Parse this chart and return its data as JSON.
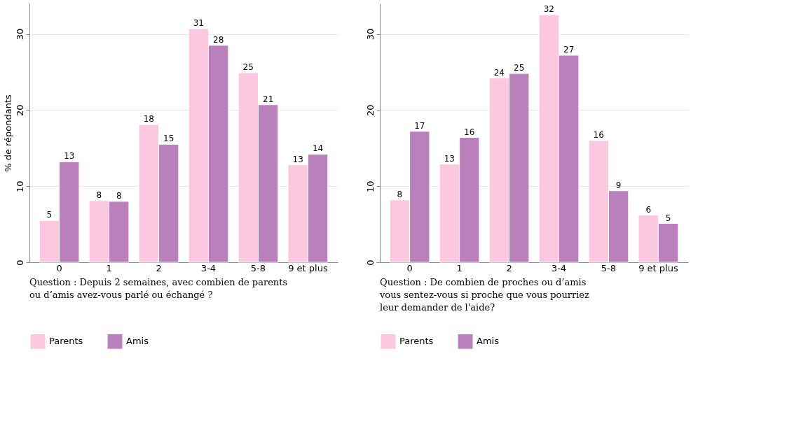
{
  "chart_data": [
    {
      "type": "bar",
      "ylabel": "% de répondants",
      "categories": [
        "0",
        "1",
        "2",
        "3-4",
        "5-8",
        "9 et plus"
      ],
      "ylim": [
        0,
        34
      ],
      "yticks": [
        0,
        10,
        20,
        30
      ],
      "grid": "y",
      "legend": "bottom",
      "series": [
        {
          "name": "Parents",
          "color": "#fcc8e0",
          "values": [
            5.5,
            8.1,
            18.1,
            30.7,
            24.9,
            12.8
          ],
          "value_labels": [
            "5",
            "8",
            "18",
            "31",
            "25",
            "13"
          ]
        },
        {
          "name": "Amis",
          "color": "#ba80bb",
          "values": [
            13.2,
            8.0,
            15.5,
            28.5,
            20.7,
            14.2
          ],
          "value_labels": [
            "13",
            "8",
            "15",
            "28",
            "21",
            "14"
          ]
        }
      ],
      "annotations": [
        "Question : Depuis 2 semaines, avec combien de parents\nou d’amis avez-vous parlé ou échangé ?"
      ]
    },
    {
      "type": "bar",
      "categories": [
        "0",
        "1",
        "2",
        "3-4",
        "5-8",
        "9 et plus"
      ],
      "ylim": [
        0,
        34
      ],
      "yticks": [
        0,
        10,
        20,
        30
      ],
      "grid": "y",
      "legend": "bottom",
      "series": [
        {
          "name": "Parents",
          "color": "#fcc8e0",
          "values": [
            8.2,
            12.9,
            24.2,
            32.5,
            16.0,
            6.2
          ],
          "value_labels": [
            "8",
            "13",
            "24",
            "32",
            "16",
            "6"
          ]
        },
        {
          "name": "Amis",
          "color": "#ba80bb",
          "values": [
            17.2,
            16.4,
            24.8,
            27.2,
            9.4,
            5.1
          ],
          "value_labels": [
            "17",
            "16",
            "25",
            "27",
            "9",
            "5"
          ]
        }
      ],
      "annotations": [
        "Question : De combien de proches ou d’amis\nvous sentez-vous si proche que vous pourriez\nleur demander de l'aide?"
      ]
    }
  ]
}
